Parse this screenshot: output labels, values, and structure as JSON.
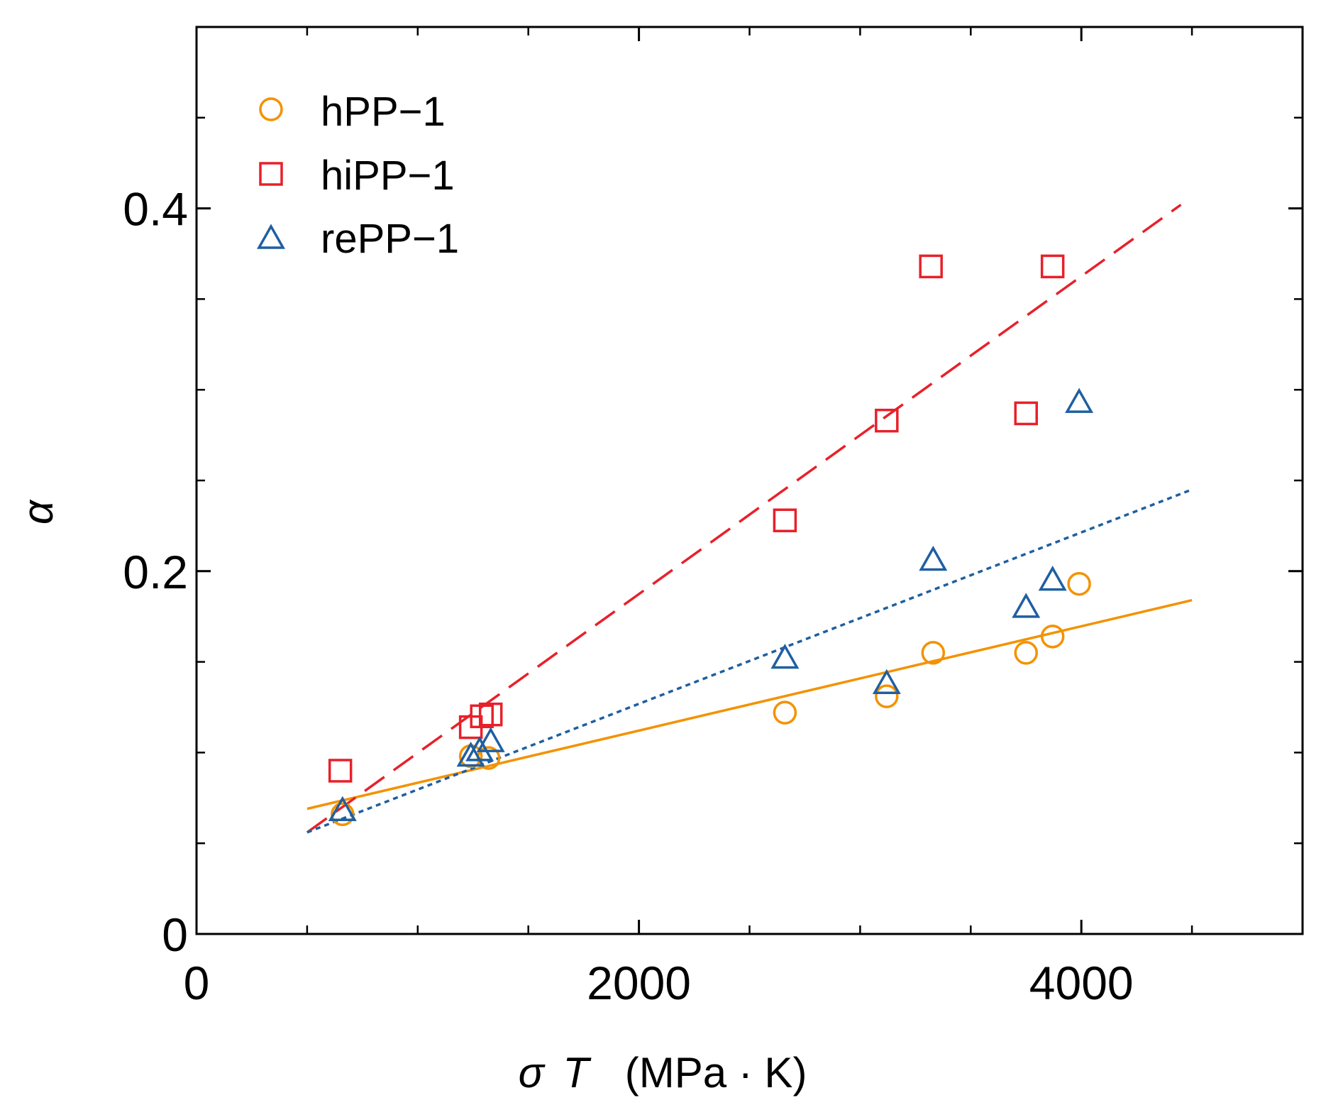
{
  "chart_data": {
    "type": "scatter",
    "title": "",
    "xlabel": {
      "symbol1": "σ",
      "symbol2": "T",
      "unit": "(MPa · K)"
    },
    "ylabel": "α",
    "xlim": [
      0,
      5000
    ],
    "ylim": [
      0,
      0.5
    ],
    "x_ticks": [
      0,
      2000,
      4000
    ],
    "x_tick_labels": [
      "0",
      "2000",
      "4000"
    ],
    "x_minor_ticks": [
      500,
      1000,
      1500,
      2500,
      3000,
      3500,
      4500
    ],
    "y_ticks": [
      0,
      0.2,
      0.4
    ],
    "y_tick_labels": [
      "0",
      "0.2",
      "0.4"
    ],
    "y_minor_ticks": [
      0.05,
      0.1,
      0.15,
      0.25,
      0.3,
      0.35,
      0.45
    ],
    "legend_position": "top-left",
    "series": [
      {
        "name": "hPP−1",
        "marker": "circle",
        "color": "#F39200",
        "line_style": "solid",
        "points": [
          [
            660,
            0.066
          ],
          [
            1240,
            0.098
          ],
          [
            1320,
            0.097
          ],
          [
            2660,
            0.122
          ],
          [
            3120,
            0.131
          ],
          [
            3330,
            0.155
          ],
          [
            3750,
            0.155
          ],
          [
            3870,
            0.164
          ],
          [
            3990,
            0.193
          ]
        ],
        "fit": [
          [
            500,
            0.069
          ],
          [
            4500,
            0.184
          ]
        ]
      },
      {
        "name": "hiPP−1",
        "marker": "square",
        "color": "#E8202A",
        "line_style": "dashed",
        "points": [
          [
            650,
            0.09
          ],
          [
            1240,
            0.114
          ],
          [
            1290,
            0.12
          ],
          [
            1330,
            0.121
          ],
          [
            2660,
            0.228
          ],
          [
            3120,
            0.283
          ],
          [
            3320,
            0.368
          ],
          [
            3750,
            0.287
          ],
          [
            3870,
            0.368
          ]
        ],
        "fit": [
          [
            500,
            0.056
          ],
          [
            4450,
            0.402
          ]
        ]
      },
      {
        "name": "rePP−1",
        "marker": "triangle",
        "color": "#1F5FA0",
        "line_style": "dotted",
        "points": [
          [
            660,
            0.068
          ],
          [
            1240,
            0.098
          ],
          [
            1280,
            0.101
          ],
          [
            1330,
            0.106
          ],
          [
            2660,
            0.152
          ],
          [
            3120,
            0.138
          ],
          [
            3330,
            0.206
          ],
          [
            3750,
            0.18
          ],
          [
            3870,
            0.195
          ],
          [
            3990,
            0.293
          ]
        ],
        "fit": [
          [
            500,
            0.056
          ],
          [
            4500,
            0.245
          ]
        ]
      }
    ]
  }
}
